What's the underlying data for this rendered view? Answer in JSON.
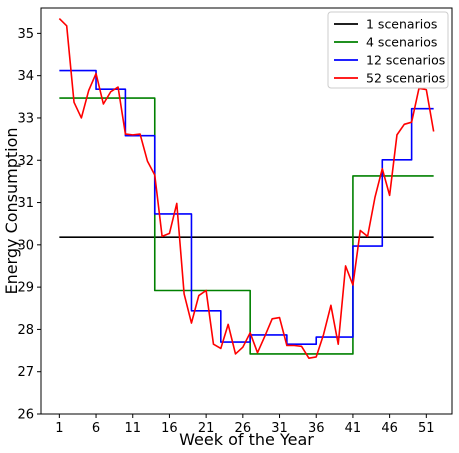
{
  "chart_data": {
    "type": "line",
    "title": "",
    "xlabel": "Week of the Year",
    "ylabel": "Energy Consumption",
    "xlim": [
      -1.5,
      54.5
    ],
    "ylim": [
      26,
      35.6
    ],
    "xticks": [
      1,
      6,
      11,
      16,
      21,
      26,
      31,
      36,
      41,
      46,
      51
    ],
    "yticks": [
      26,
      27,
      28,
      29,
      30,
      31,
      32,
      33,
      34,
      35
    ],
    "grid": false,
    "legend_position": "top-right",
    "x": [
      1,
      2,
      3,
      4,
      5,
      6,
      7,
      8,
      9,
      10,
      11,
      12,
      13,
      14,
      15,
      16,
      17,
      18,
      19,
      20,
      21,
      22,
      23,
      24,
      25,
      26,
      27,
      28,
      29,
      30,
      31,
      32,
      33,
      34,
      35,
      36,
      37,
      38,
      39,
      40,
      41,
      42,
      43,
      44,
      45,
      46,
      47,
      48,
      49,
      50,
      51,
      52
    ],
    "series": [
      {
        "name": "1 scenarios",
        "color": "#000000",
        "values": [
          30.18,
          30.18,
          30.18,
          30.18,
          30.18,
          30.18,
          30.18,
          30.18,
          30.18,
          30.18,
          30.18,
          30.18,
          30.18,
          30.18,
          30.18,
          30.18,
          30.18,
          30.18,
          30.18,
          30.18,
          30.18,
          30.18,
          30.18,
          30.18,
          30.18,
          30.18,
          30.18,
          30.18,
          30.18,
          30.18,
          30.18,
          30.18,
          30.18,
          30.18,
          30.18,
          30.18,
          30.18,
          30.18,
          30.18,
          30.18,
          30.18,
          30.18,
          30.18,
          30.18,
          30.18,
          30.18,
          30.18,
          30.18,
          30.18,
          30.18,
          30.18,
          30.18
        ]
      },
      {
        "name": "4 scenarios",
        "color": "#008000",
        "values": [
          33.47,
          33.47,
          33.47,
          33.47,
          33.47,
          33.47,
          33.47,
          33.47,
          33.47,
          33.47,
          33.47,
          33.47,
          33.47,
          28.92,
          28.92,
          28.92,
          28.92,
          28.92,
          28.92,
          28.92,
          28.92,
          28.92,
          28.92,
          28.92,
          28.92,
          28.92,
          27.42,
          27.42,
          27.42,
          27.42,
          27.42,
          27.42,
          27.42,
          27.42,
          27.42,
          27.42,
          27.42,
          27.42,
          27.42,
          27.42,
          31.63,
          31.63,
          31.63,
          31.63,
          31.63,
          31.63,
          31.63,
          31.63,
          31.63,
          31.63,
          31.63,
          31.63
        ]
      },
      {
        "name": "12 scenarios",
        "color": "#0000ff",
        "values": [
          34.12,
          34.12,
          34.12,
          34.12,
          34.12,
          33.68,
          33.68,
          33.68,
          33.68,
          32.58,
          32.58,
          32.58,
          32.58,
          30.73,
          30.73,
          30.73,
          30.73,
          30.73,
          28.44,
          28.44,
          28.44,
          28.44,
          27.7,
          27.7,
          27.7,
          27.7,
          27.87,
          27.87,
          27.87,
          27.87,
          27.87,
          27.65,
          27.65,
          27.65,
          27.65,
          27.82,
          27.82,
          27.82,
          27.82,
          27.82,
          29.97,
          29.97,
          29.97,
          29.97,
          32.01,
          32.01,
          32.01,
          32.01,
          33.22,
          33.22,
          33.22,
          33.22
        ]
      },
      {
        "name": "52 scenarios",
        "color": "#ff0000",
        "values": [
          35.35,
          35.18,
          33.37,
          33.0,
          33.65,
          34.05,
          33.33,
          33.62,
          33.73,
          32.62,
          32.6,
          32.62,
          31.98,
          31.65,
          30.2,
          30.27,
          30.98,
          28.84,
          28.15,
          28.8,
          28.92,
          27.65,
          27.55,
          28.12,
          27.42,
          27.58,
          27.92,
          27.45,
          27.84,
          28.25,
          28.28,
          27.62,
          27.62,
          27.6,
          27.32,
          27.35,
          27.88,
          28.57,
          27.65,
          29.5,
          29.05,
          30.34,
          30.2,
          31.12,
          31.8,
          31.17,
          32.6,
          32.85,
          32.9,
          33.7,
          33.67,
          32.68
        ]
      }
    ]
  }
}
